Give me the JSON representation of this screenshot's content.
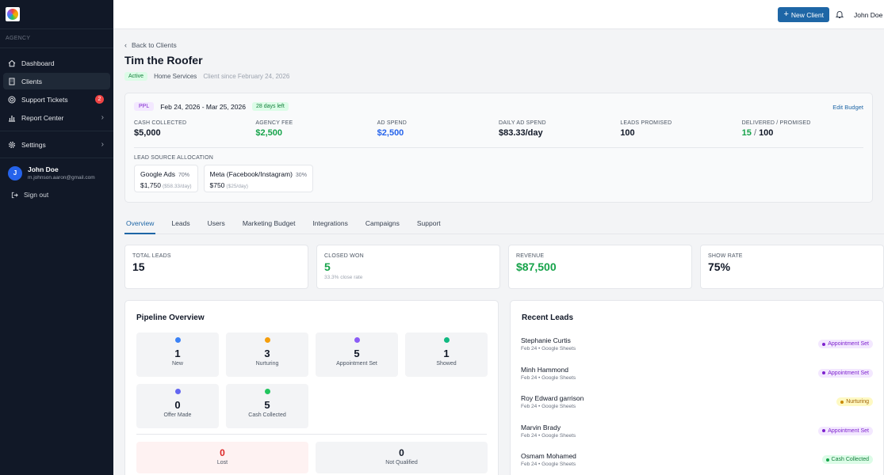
{
  "sidebar": {
    "section_label": "AGENCY",
    "items": [
      {
        "label": "Dashboard",
        "icon": "home-icon"
      },
      {
        "label": "Clients",
        "icon": "building-icon"
      },
      {
        "label": "Support Tickets",
        "icon": "lifebuoy-icon",
        "badge": "2"
      },
      {
        "label": "Report Center",
        "icon": "bar-chart-icon"
      },
      {
        "label": "Settings",
        "icon": "gear-icon"
      }
    ],
    "user": {
      "initial": "J",
      "name": "John Doe",
      "email": "m.johnson.aaron@gmail.com"
    },
    "signout_label": "Sign out"
  },
  "topbar": {
    "new_client_label": "New Client",
    "user_name": "John Doe"
  },
  "client": {
    "back_label": "Back to Clients",
    "name": "Tim the Roofer",
    "status": "Active",
    "category": "Home Services",
    "since": "Client since February 24, 2026"
  },
  "budget": {
    "type_badge": "PPL",
    "date_range": "Feb 24, 2026 - Mar 25, 2026",
    "days_left": "28 days left",
    "edit_label": "Edit Budget",
    "stats": [
      {
        "label": "CASH COLLECTED",
        "value": "$5,000"
      },
      {
        "label": "AGENCY FEE",
        "value": "$2,500"
      },
      {
        "label": "AD SPEND",
        "value": "$2,500"
      },
      {
        "label": "DAILY AD SPEND",
        "value": "$83.33/day"
      },
      {
        "label": "LEADS PROMISED",
        "value": "100"
      },
      {
        "label": "DELIVERED / PROMISED",
        "delivered": "15",
        "sep": " / ",
        "promised": "100"
      }
    ],
    "allocation_label": "LEAD SOURCE ALLOCATION",
    "allocations": [
      {
        "name": "Google Ads",
        "pct": "70%",
        "amount": "$1,750",
        "daily": "($58.33/day)"
      },
      {
        "name": "Meta (Facebook/Instagram)",
        "pct": "30%",
        "amount": "$750",
        "daily": "($25/day)"
      }
    ]
  },
  "tabs": [
    "Overview",
    "Leads",
    "Users",
    "Marketing Budget",
    "Integrations",
    "Campaigns",
    "Support"
  ],
  "kpis": [
    {
      "label": "TOTAL LEADS",
      "value": "15",
      "sub": ""
    },
    {
      "label": "CLOSED WON",
      "value": "5",
      "sub": "33.3% close rate"
    },
    {
      "label": "REVENUE",
      "value": "$87,500",
      "sub": ""
    },
    {
      "label": "SHOW RATE",
      "value": "75%",
      "sub": ""
    }
  ],
  "pipeline": {
    "title": "Pipeline Overview",
    "stages": [
      {
        "label": "New",
        "count": "1",
        "color": "#3b82f6"
      },
      {
        "label": "Nurturing",
        "count": "3",
        "color": "#f59e0b"
      },
      {
        "label": "Appointment Set",
        "count": "5",
        "color": "#8b5cf6"
      },
      {
        "label": "Showed",
        "count": "1",
        "color": "#10b981"
      },
      {
        "label": "Offer Made",
        "count": "0",
        "color": "#6366f1"
      },
      {
        "label": "Cash Collected",
        "count": "5",
        "color": "#22c55e"
      }
    ],
    "lost": {
      "label": "Lost",
      "count": "0"
    },
    "not_qualified": {
      "label": "Not Qualified",
      "count": "0"
    }
  },
  "recent_leads": {
    "title": "Recent Leads",
    "items": [
      {
        "name": "Stephanie Curtis",
        "sub": "Feb 24 • Google Sheets",
        "status": "Appointment Set"
      },
      {
        "name": "Minh Hammond",
        "sub": "Feb 24 • Google Sheets",
        "status": "Appointment Set"
      },
      {
        "name": "Roy Edward garrison",
        "sub": "Feb 24 • Google Sheets",
        "status": "Nurturing"
      },
      {
        "name": "Marvin Brady",
        "sub": "Feb 24 • Google Sheets",
        "status": "Appointment Set"
      },
      {
        "name": "Osmam Mohamed",
        "sub": "Feb 24 • Google Sheets",
        "status": "Cash Collected"
      }
    ]
  },
  "colors": {
    "sidebar_bg": "#111827",
    "accent": "#1e66a6",
    "green": "#16a34a",
    "blue": "#2563eb",
    "red": "#dc2626"
  }
}
